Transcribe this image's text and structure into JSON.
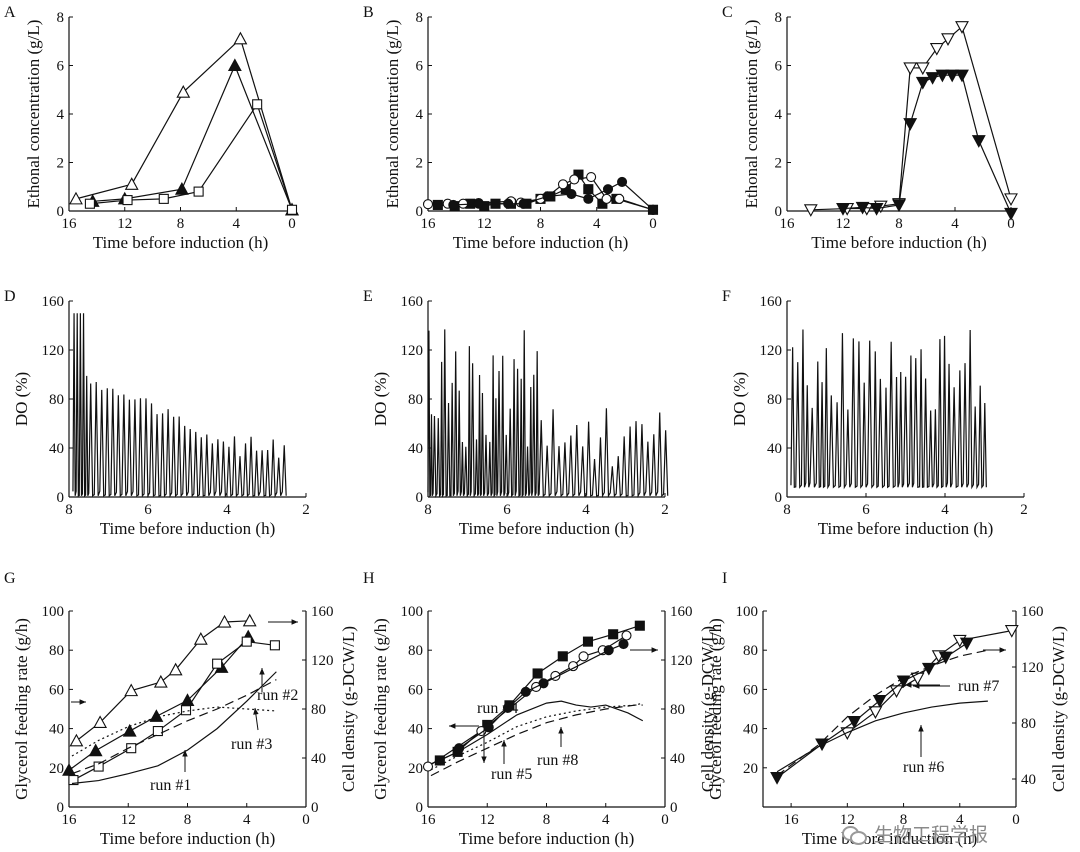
{
  "watermark": "生物工程学报",
  "chart_data": [
    {
      "panel": "A",
      "type": "line",
      "xlabel": "Time before induction (h)",
      "ylabel": "Ethonal concentration (g/L)",
      "xlim": [
        16,
        0
      ],
      "ylim": [
        0,
        8
      ],
      "xticks": [
        16,
        12,
        8,
        4,
        0
      ],
      "yticks": [
        0,
        2,
        4,
        6,
        8
      ],
      "series": [
        {
          "marker": "tri-up-open",
          "x": [
            15.5,
            11.5,
            7.8,
            3.7,
            0
          ],
          "y": [
            0.5,
            1.1,
            4.9,
            7.1,
            0.05
          ]
        },
        {
          "marker": "tri-up-filled",
          "x": [
            14.3,
            12,
            7.9,
            4.1,
            0
          ],
          "y": [
            0.4,
            0.5,
            0.9,
            6.0,
            0.05
          ]
        },
        {
          "marker": "square-open",
          "x": [
            14.5,
            11.8,
            9.2,
            6.7,
            2.5,
            0
          ],
          "y": [
            0.3,
            0.45,
            0.5,
            0.8,
            4.4,
            0.05
          ]
        }
      ]
    },
    {
      "panel": "B",
      "type": "line",
      "xlabel": "Time before induction (h)",
      "ylabel": "Ethonal concentration (g/L)",
      "xlim": [
        16,
        0
      ],
      "ylim": [
        0,
        8
      ],
      "xticks": [
        16,
        12,
        8,
        4,
        0
      ],
      "yticks": [
        0,
        2,
        4,
        6,
        8
      ],
      "series": [
        {
          "marker": "square-filled",
          "x": [
            15.3,
            14.1,
            13,
            12,
            11.2,
            10.1,
            9,
            8,
            7.3,
            6.2,
            5.3,
            4.6,
            3.6,
            2.6,
            0
          ],
          "y": [
            0.25,
            0.2,
            0.3,
            0.2,
            0.3,
            0.3,
            0.3,
            0.5,
            0.6,
            0.9,
            1.5,
            0.9,
            0.3,
            0.5,
            0.05
          ]
        },
        {
          "marker": "circle-open",
          "x": [
            16,
            14.6,
            13.5,
            12.4,
            10.1,
            9.4,
            8,
            7.5,
            6.4,
            5.6,
            4.4,
            3.3,
            2.4,
            0
          ],
          "y": [
            0.28,
            0.3,
            0.3,
            0.33,
            0.4,
            0.35,
            0.5,
            0.6,
            1.1,
            1.3,
            1.4,
            0.5,
            0.5,
            0.05
          ]
        },
        {
          "marker": "circle-filled",
          "x": [
            14.2,
            12.4,
            10.3,
            9.2,
            7.5,
            5.8,
            4.6,
            3.2,
            2.2,
            0
          ],
          "y": [
            0.25,
            0.3,
            0.3,
            0.3,
            0.6,
            0.7,
            0.5,
            0.9,
            1.2,
            0.05
          ]
        }
      ]
    },
    {
      "panel": "C",
      "type": "line",
      "xlabel": "Time before induction (h)",
      "ylabel": "Ethonal concentration (g/L)",
      "xlim": [
        16,
        0
      ],
      "ylim": [
        0,
        8
      ],
      "xticks": [
        16,
        12,
        8,
        4,
        0
      ],
      "yticks": [
        0,
        2,
        4,
        6,
        8
      ],
      "series": [
        {
          "marker": "tri-down-open",
          "x": [
            14.3,
            11.7,
            10.3,
            9.3,
            8,
            7.2,
            6.3,
            5.3,
            4.5,
            3.5,
            0
          ],
          "y": [
            0.05,
            0.1,
            0.1,
            0.2,
            0.3,
            5.9,
            5.9,
            6.7,
            7.1,
            7.6,
            0.5
          ]
        },
        {
          "marker": "tri-down-filled",
          "x": [
            12,
            10.6,
            9.6,
            8,
            7.2,
            6.3,
            5.6,
            4.9,
            4.2,
            3.5,
            2.3,
            0
          ],
          "y": [
            0.1,
            0.15,
            0.1,
            0.25,
            3.6,
            5.3,
            5.5,
            5.6,
            5.6,
            5.6,
            2.9,
            -0.1
          ]
        }
      ]
    },
    {
      "panel": "D",
      "type": "line",
      "ylabel": "DO (%)",
      "xlabel": "Time before induction (h)",
      "xlim": [
        8,
        2
      ],
      "ylim": [
        0,
        160
      ],
      "xticks": [
        8,
        6,
        4,
        2
      ],
      "yticks": [
        0,
        40,
        80,
        120,
        160
      ],
      "span": [
        7.9,
        2.6
      ]
    },
    {
      "panel": "E",
      "type": "line",
      "ylabel": "DO (%)",
      "xlabel": "Time before induction (h)",
      "xlim": [
        8,
        2
      ],
      "ylim": [
        0,
        160
      ],
      "xticks": [
        8,
        6,
        4,
        2
      ],
      "yticks": [
        0,
        40,
        80,
        120,
        160
      ],
      "span": [
        8,
        2
      ]
    },
    {
      "panel": "F",
      "type": "line",
      "ylabel": "DO (%)",
      "xlabel": "Time before induction (h)",
      "xlim": [
        8,
        2
      ],
      "ylim": [
        0,
        160
      ],
      "xticks": [
        8,
        6,
        4,
        2
      ],
      "yticks": [
        0,
        40,
        80,
        120,
        160
      ],
      "span": [
        7.9,
        3
      ]
    },
    {
      "panel": "G",
      "type": "line",
      "xlabel": "Time before induction (h)",
      "ylabel": "Glycerol feeding rate (g/h)",
      "ylabel2": "Cell density (g-DCW/L)",
      "xlim": [
        16,
        0
      ],
      "ylim": [
        0,
        100
      ],
      "ylim2": [
        0,
        160
      ],
      "xticks": [
        16,
        12,
        8,
        4,
        0
      ],
      "yticks": [
        0,
        20,
        40,
        60,
        80,
        100
      ],
      "yticks2": [
        0,
        40,
        80,
        120,
        160
      ],
      "series": [
        {
          "axis": "right",
          "marker": "tri-up-open",
          "x": [
            15.5,
            13.9,
            11.8,
            9.8,
            8.8,
            7.1,
            5.5,
            3.8
          ],
          "y": [
            54,
            69,
            95,
            102,
            112,
            137,
            151,
            152
          ]
        },
        {
          "axis": "right",
          "marker": "tri-up-filled",
          "x": [
            16,
            14.2,
            11.9,
            10.1,
            8,
            5.7,
            3.9
          ],
          "y": [
            30,
            46,
            62,
            74,
            87,
            114,
            139
          ]
        },
        {
          "axis": "right",
          "marker": "square-open",
          "x": [
            15.7,
            14,
            11.8,
            10,
            8.1,
            6,
            4,
            2.1
          ],
          "y": [
            22,
            33,
            48,
            62,
            79,
            117,
            135,
            132
          ]
        },
        {
          "axis": "left",
          "style": "solid",
          "label": "run #1",
          "x": [
            15.8,
            14,
            12,
            10,
            8,
            6,
            4,
            2
          ],
          "y": [
            12,
            13.5,
            17,
            21,
            29,
            40,
            54,
            69
          ]
        },
        {
          "axis": "left",
          "style": "dash",
          "label": "run #3",
          "x": [
            15.8,
            14,
            12,
            10,
            8,
            6,
            4,
            2
          ],
          "y": [
            17,
            22,
            30,
            37,
            44,
            50,
            57,
            65
          ]
        },
        {
          "axis": "left",
          "style": "dot",
          "label": "run #2",
          "x": [
            15.8,
            14,
            12,
            10,
            8,
            6,
            4,
            2
          ],
          "y": [
            26,
            34,
            41,
            46,
            49,
            51,
            50,
            49
          ]
        }
      ],
      "annotations": [
        "run #2",
        "run #3",
        "run #1"
      ]
    },
    {
      "panel": "H",
      "type": "line",
      "xlabel": "Time before induction (h)",
      "ylabel": "Glycerol feeding rate (g/h)",
      "ylabel2": "Cell density (g-DCW/L)",
      "xlim": [
        16,
        0
      ],
      "ylim": [
        0,
        100
      ],
      "ylim2": [
        0,
        160
      ],
      "xticks": [
        16,
        12,
        8,
        4,
        0
      ],
      "yticks": [
        0,
        20,
        40,
        60,
        80,
        100
      ],
      "yticks2": [
        0,
        40,
        80,
        120,
        160
      ],
      "series": [
        {
          "axis": "right",
          "marker": "square-filled",
          "x": [
            15.2,
            14,
            12,
            10.5,
            8.6,
            6.9,
            5.2,
            3.5,
            1.7
          ],
          "y": [
            38,
            45,
            67,
            83,
            109,
            123,
            135,
            141,
            148
          ]
        },
        {
          "axis": "right",
          "marker": "circle-open",
          "x": [
            16,
            12.4,
            8.7,
            7.4,
            6.2,
            5.5,
            4.2,
            2.6
          ],
          "y": [
            33,
            62,
            98,
            107,
            115,
            123,
            128,
            140
          ]
        },
        {
          "axis": "right",
          "marker": "circle-filled",
          "x": [
            13.9,
            11.9,
            10.6,
            9.4,
            8.2,
            3.8,
            2.8
          ],
          "y": [
            48,
            65,
            81,
            94,
            101,
            128,
            133
          ]
        },
        {
          "axis": "left",
          "style": "solid",
          "label": "run #4",
          "x": [
            15.8,
            14,
            12,
            10,
            8,
            7,
            6,
            5,
            4,
            2.5,
            1.5
          ],
          "y": [
            22,
            28,
            37,
            47,
            53,
            54,
            52,
            51,
            52,
            48,
            44
          ]
        },
        {
          "axis": "left",
          "style": "dash",
          "label": "run #8",
          "x": [
            15.8,
            14,
            12,
            10,
            8,
            6,
            4,
            2,
            1.5
          ],
          "y": [
            16,
            23,
            30,
            37,
            43,
            47,
            50,
            52,
            52
          ]
        },
        {
          "axis": "left",
          "style": "dot",
          "label": "run #5",
          "x": [
            15.8,
            14,
            12,
            10,
            8,
            6,
            4,
            2,
            1.5
          ],
          "y": [
            19,
            26,
            33,
            41,
            46,
            49,
            51,
            52,
            53
          ]
        }
      ],
      "annotations": [
        "run #4",
        "run #5",
        "run #8"
      ]
    },
    {
      "panel": "I",
      "type": "line",
      "xlabel": "Time before induction (h)",
      "ylabel": "Glycerol feeding rate (g/h)",
      "ylabel2": "Cell density (g-DCW/L)",
      "xlim": [
        18,
        0
      ],
      "ylim": [
        0,
        100
      ],
      "ylim2": [
        20,
        160
      ],
      "xticks": [
        16,
        12,
        8,
        4,
        0
      ],
      "yticks": [
        20,
        40,
        60,
        80,
        100
      ],
      "yticks2": [
        40,
        80,
        120,
        160
      ],
      "series": [
        {
          "axis": "right",
          "marker": "tri-down-open",
          "x": [
            12,
            10,
            8.5,
            7,
            5.5,
            4,
            0.3
          ],
          "y": [
            73,
            88,
            103,
            112,
            128,
            139,
            146
          ]
        },
        {
          "axis": "right",
          "marker": "tri-down-filled",
          "x": [
            17,
            13.8,
            11.5,
            9.7,
            8,
            6.2,
            5,
            3.5
          ],
          "y": [
            41,
            65,
            81,
            96,
            110,
            119,
            127,
            137
          ]
        },
        {
          "axis": "left",
          "style": "solid",
          "label": "run #6",
          "x": [
            17,
            14,
            12,
            10,
            8,
            6,
            4,
            2
          ],
          "y": [
            18,
            31,
            38,
            44,
            48,
            51,
            53,
            54
          ]
        },
        {
          "axis": "left",
          "style": "dash",
          "label": "run #7",
          "x": [
            17,
            14,
            12,
            10,
            8,
            6,
            4,
            2
          ],
          "y": [
            16,
            32,
            46,
            57,
            66,
            72,
            77,
            80
          ]
        }
      ],
      "annotations": [
        "run #7",
        "run #6"
      ]
    }
  ]
}
